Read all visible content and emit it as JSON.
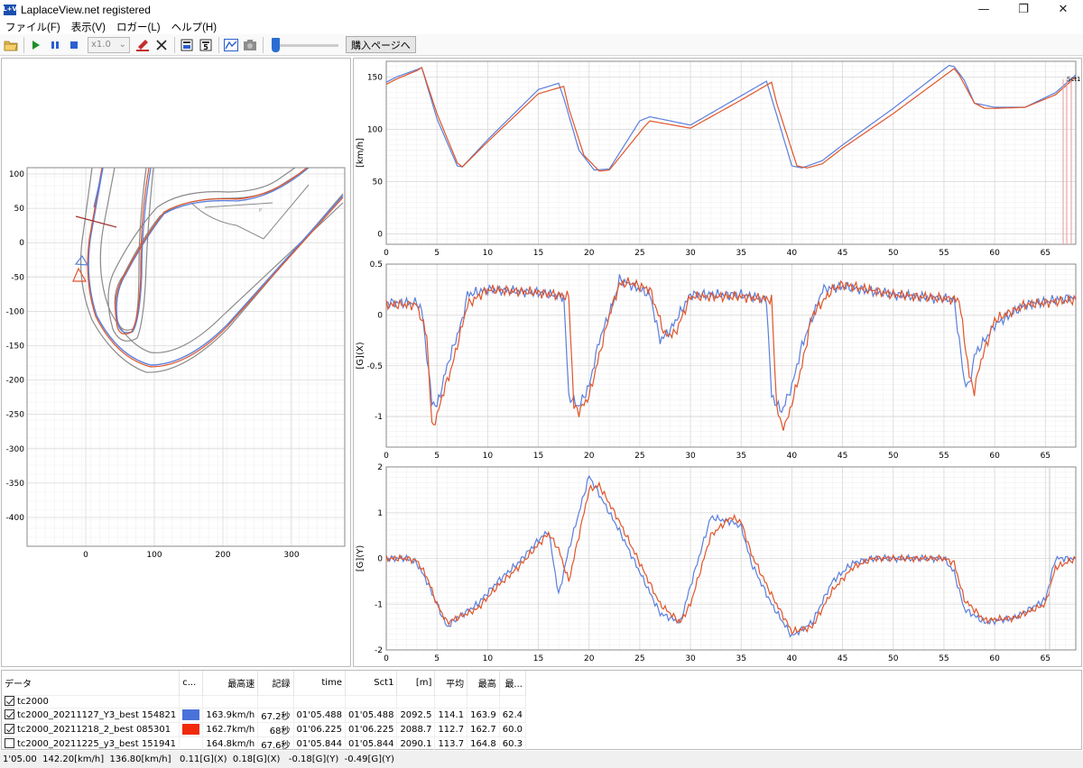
{
  "window": {
    "title": "LaplaceView.net registered",
    "icon_text": "L+V",
    "minimize_glyph": "—",
    "maximize_glyph": "❐",
    "close_glyph": "✕"
  },
  "menu": [
    "ファイル(F)",
    "表示(V)",
    "ロガー(L)",
    "ヘルプ(H)"
  ],
  "toolbar": {
    "zoom_value": "x1.0",
    "buy_label": "購入ページへ",
    "icons": [
      "open-folder-icon",
      "play-icon",
      "pause-icon",
      "stop-icon",
      "zoom-select",
      "marker-icon",
      "close-icon",
      "export-icon",
      "export-5-icon",
      "chart-icon",
      "camera-icon",
      "timeline-slider"
    ]
  },
  "colors": {
    "lap1": "#5b7fdc",
    "lap2": "#e0552a",
    "grid": "#e6e6e6",
    "track_outline": "#8a8a8a"
  },
  "map": {
    "x_ticks": [
      "0",
      "100",
      "200",
      "300"
    ],
    "y_ticks": [
      "100",
      "50",
      "0",
      "-50",
      "-100",
      "-150",
      "-200",
      "-250",
      "-300",
      "-350",
      "-400"
    ]
  },
  "charts": [
    {
      "ylabel": "[km/h]",
      "yticks": [
        "150",
        "100",
        "50",
        "0"
      ],
      "annotation": "Sct1"
    },
    {
      "ylabel": "[G](X)",
      "yticks": [
        "0.5",
        "0",
        "-0.5",
        "-1"
      ]
    },
    {
      "ylabel": "[G](Y)",
      "yticks": [
        "2",
        "1",
        "0",
        "-1",
        "-2"
      ]
    }
  ],
  "x_ticks": [
    "0",
    "5",
    "10",
    "15",
    "20",
    "25",
    "30",
    "35",
    "40",
    "45",
    "50",
    "55",
    "60",
    "65"
  ],
  "chart_data": [
    {
      "type": "line",
      "ylabel": "[km/h]",
      "xlim": [
        0,
        68
      ],
      "ylim": [
        -10,
        165
      ],
      "series": [
        {
          "color": "#5b7fdc",
          "x": [
            0,
            1,
            3,
            3.5,
            5,
            7,
            7.5,
            10,
            15,
            17,
            17.5,
            19,
            20.5,
            22,
            25,
            26,
            30,
            35,
            37.5,
            38,
            40,
            41,
            43,
            45,
            50,
            55.5,
            56,
            57,
            58,
            60,
            63,
            66,
            68
          ],
          "y": [
            145,
            150,
            157,
            159,
            110,
            65,
            64,
            90,
            138,
            144,
            130,
            80,
            61,
            62,
            108,
            112,
            104,
            132,
            146,
            130,
            65,
            63,
            70,
            85,
            120,
            161,
            160,
            147,
            125,
            121,
            121,
            135,
            152
          ]
        },
        {
          "color": "#e0552a",
          "x": [
            0,
            1,
            3,
            3.5,
            5,
            7,
            7.5,
            10,
            15,
            17.5,
            18,
            19.5,
            21,
            22,
            25.5,
            26,
            30,
            35,
            38,
            38.5,
            40.5,
            41.5,
            43,
            45,
            50,
            56,
            56.5,
            58,
            59,
            60,
            63,
            66,
            68
          ],
          "y": [
            143,
            148,
            156,
            159,
            115,
            68,
            64,
            88,
            134,
            141,
            120,
            75,
            60,
            61,
            103,
            108,
            101,
            128,
            145,
            125,
            65,
            63,
            67,
            82,
            115,
            158,
            152,
            125,
            120,
            120,
            121,
            133,
            150
          ]
        }
      ]
    },
    {
      "type": "line",
      "ylabel": "[G](X)",
      "xlim": [
        0,
        68
      ],
      "ylim": [
        -1.3,
        0.5
      ],
      "series": [
        {
          "color": "#5b7fdc",
          "x": [
            0,
            3,
            3.5,
            4.5,
            5,
            6,
            7.5,
            8,
            10,
            15,
            17.5,
            18,
            19,
            20,
            21,
            22.5,
            23,
            24,
            26,
            27,
            28,
            30,
            35,
            37.5,
            38,
            39,
            40,
            41,
            42.5,
            43,
            45,
            50,
            56,
            57,
            57.5,
            58,
            60,
            63,
            68
          ],
          "y": [
            0.12,
            0.12,
            0.05,
            -0.85,
            -0.9,
            -0.5,
            -0.05,
            0.2,
            0.25,
            0.22,
            0.18,
            -0.8,
            -0.9,
            -0.7,
            -0.25,
            0.15,
            0.35,
            0.3,
            0.2,
            -0.25,
            -0.15,
            0.2,
            0.2,
            0.15,
            -0.8,
            -0.95,
            -0.7,
            -0.3,
            0.1,
            0.25,
            0.28,
            0.2,
            0.15,
            -0.65,
            -0.7,
            -0.4,
            -0.1,
            0.1,
            0.18
          ]
        },
        {
          "color": "#e0552a",
          "x": [
            0,
            3,
            4,
            4.5,
            5,
            5.5,
            6.5,
            8,
            10,
            15,
            18,
            18.5,
            19,
            20,
            21,
            22,
            23,
            24,
            26,
            27.5,
            28.5,
            30,
            35,
            38,
            38.5,
            39,
            39.5,
            41,
            42,
            44,
            45,
            50,
            56.5,
            57.5,
            58,
            58.5,
            60,
            63,
            68
          ],
          "y": [
            0.1,
            0.1,
            -0.2,
            -1.1,
            -1.0,
            -0.8,
            -0.5,
            0.1,
            0.25,
            0.22,
            0.18,
            -0.9,
            -0.95,
            -0.8,
            -0.4,
            0.0,
            0.3,
            0.32,
            0.25,
            -0.2,
            -0.18,
            0.18,
            0.18,
            0.15,
            -0.9,
            -1.1,
            -1.05,
            -0.5,
            0.0,
            0.25,
            0.3,
            0.2,
            0.15,
            -0.6,
            -0.75,
            -0.5,
            -0.05,
            0.1,
            0.15
          ]
        }
      ]
    },
    {
      "type": "line",
      "ylabel": "[G](Y)",
      "xlim": [
        0,
        68
      ],
      "ylim": [
        -2,
        2
      ],
      "series": [
        {
          "color": "#5b7fdc",
          "x": [
            0,
            2,
            3,
            4,
            5,
            6,
            7,
            9,
            11,
            13,
            15,
            16,
            17,
            18,
            19,
            20,
            21,
            23,
            25,
            27,
            29,
            30,
            32,
            34,
            35,
            36,
            38,
            40,
            42,
            44,
            46,
            48,
            50,
            53,
            55,
            56,
            57,
            59,
            62,
            65,
            66,
            68
          ],
          "y": [
            0,
            0,
            -0.1,
            -0.5,
            -1.0,
            -1.5,
            -1.3,
            -1.0,
            -0.5,
            -0.1,
            0.4,
            0.6,
            -0.8,
            0.2,
            1.0,
            1.8,
            1.4,
            0.6,
            -0.3,
            -1.2,
            -1.4,
            -0.6,
            0.9,
            0.8,
            0.7,
            -0.1,
            -1.0,
            -1.7,
            -1.4,
            -0.5,
            -0.1,
            0,
            0,
            0,
            0,
            -0.3,
            -1.1,
            -1.4,
            -1.3,
            -0.9,
            0,
            0
          ]
        },
        {
          "color": "#e0552a",
          "x": [
            0,
            2,
            3,
            4,
            5,
            6,
            7,
            9,
            11,
            13,
            15,
            16,
            17,
            18,
            19,
            20,
            21,
            23,
            25,
            27,
            29,
            30,
            32,
            34,
            35,
            36,
            38,
            40,
            42,
            44,
            46,
            48,
            50,
            53,
            55,
            56,
            57,
            59,
            62,
            65,
            66,
            68
          ],
          "y": [
            0,
            0,
            -0.05,
            -0.4,
            -1.0,
            -1.4,
            -1.3,
            -1.1,
            -0.6,
            -0.2,
            0.3,
            0.55,
            0.2,
            -0.5,
            0.5,
            1.5,
            1.6,
            0.8,
            -0.1,
            -1.0,
            -1.4,
            -1.0,
            0.5,
            0.9,
            0.8,
            0.1,
            -0.8,
            -1.6,
            -1.5,
            -0.7,
            -0.2,
            0,
            0,
            0,
            0,
            -0.1,
            -0.9,
            -1.35,
            -1.3,
            -1.0,
            -0.2,
            0
          ]
        }
      ]
    }
  ],
  "table": {
    "headers": [
      "データ",
      "c...",
      "最高速",
      "記録",
      "time",
      "Sct1",
      "[m]",
      "平均",
      "最高",
      "最..."
    ],
    "rows": [
      {
        "checked": true,
        "name": "tc2000",
        "color": "",
        "max_speed": "",
        "record": "",
        "time": "",
        "sct1": "",
        "m": "",
        "avg": "",
        "max": "",
        "last": ""
      },
      {
        "checked": true,
        "name": "tc2000_20211127_Y3_best 154821",
        "color": "#4a72d9",
        "max_speed": "163.9km/h",
        "record": "67.2秒",
        "time": "01'05.488",
        "sct1": "01'05.488",
        "m": "2092.5",
        "avg": "114.1",
        "max": "163.9",
        "last": "62.4"
      },
      {
        "checked": true,
        "name": "tc2000_20211218_2_best 085301",
        "color": "#f02a0a",
        "max_speed": "162.7km/h",
        "record": "68秒",
        "time": "01'06.225",
        "sct1": "01'06.225",
        "m": "2088.7",
        "avg": "112.7",
        "max": "162.7",
        "last": "60.0"
      },
      {
        "checked": false,
        "name": "tc2000_20211225_y3_best 151941",
        "color": "",
        "max_speed": "164.8km/h",
        "record": "67.6秒",
        "time": "01'05.844",
        "sct1": "01'05.844",
        "m": "2090.1",
        "avg": "113.7",
        "max": "164.8",
        "last": "60.3"
      }
    ]
  },
  "status": "1'05.00  142.20[km/h]  136.80[km/h]   0.11[G](X)  0.18[G](X)   -0.18[G](Y)  -0.49[G](Y)"
}
